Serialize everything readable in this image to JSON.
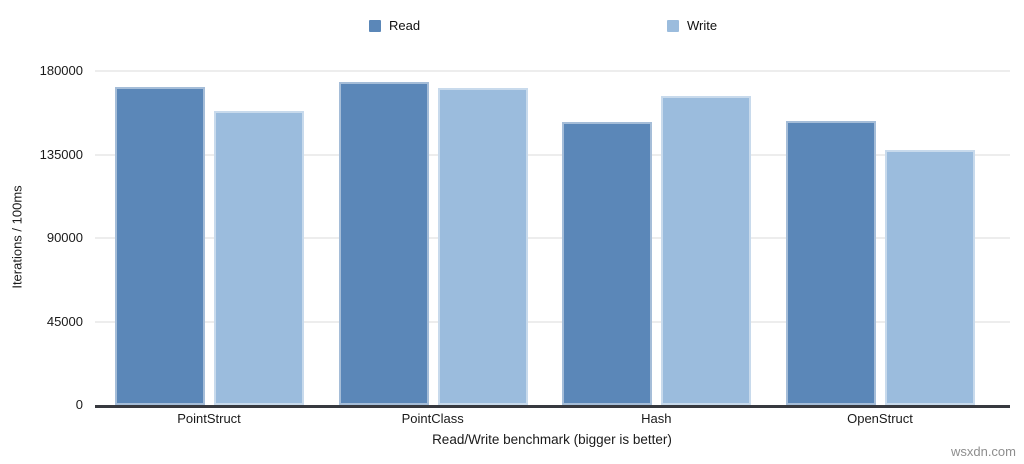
{
  "watermark": "wsxdn.com",
  "colors": {
    "read": "#5b87b8",
    "write": "#9bbcdd",
    "grid": "#ededed",
    "axis": "#37393f",
    "text": "#1a1a1a",
    "watermark_text": "#8e8e8e"
  },
  "chart_data": {
    "type": "bar",
    "title": "",
    "xlabel": "Read/Write benchmark (bigger is better)",
    "ylabel": "Iterations / 100ms",
    "categories": [
      "PointStruct",
      "PointClass",
      "Hash",
      "OpenStruct"
    ],
    "series": [
      {
        "name": "Read",
        "color": "#5b87b8",
        "values": [
          171600,
          174300,
          152800,
          153300
        ]
      },
      {
        "name": "Write",
        "color": "#9bbcdd",
        "values": [
          158700,
          171100,
          166800,
          137700
        ]
      }
    ],
    "ylim": [
      0,
      180000
    ],
    "yticks": [
      0,
      45000,
      90000,
      135000,
      180000
    ],
    "grid": true,
    "legend_position": "top"
  }
}
